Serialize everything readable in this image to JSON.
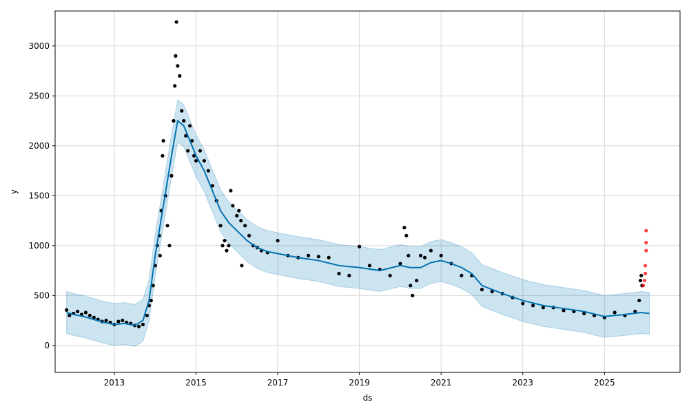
{
  "chart_data": {
    "type": "scatter",
    "title": "",
    "xlabel": "ds",
    "ylabel": "y",
    "xlim": [
      2011.55,
      2026.85
    ],
    "ylim": [
      -270,
      3350
    ],
    "grid": true,
    "x_ticks": [
      2013,
      2015,
      2017,
      2019,
      2021,
      2023,
      2025
    ],
    "y_ticks": [
      0,
      500,
      1000,
      1500,
      2000,
      2500,
      3000
    ],
    "x_tick_labels": [
      "2013",
      "2015",
      "2017",
      "2019",
      "2021",
      "2023",
      "2025"
    ],
    "y_tick_labels": [
      "0",
      "500",
      "1000",
      "1500",
      "2000",
      "2500",
      "3000"
    ],
    "colors": {
      "observed": "#000000",
      "forecast_line": "#0072B2",
      "uncertainty_band": "#0072B2",
      "new_points": "#ff0000"
    },
    "forecast": {
      "name": "yhat",
      "x": [
        2011.83,
        2012.0,
        2012.25,
        2012.5,
        2012.75,
        2013.0,
        2013.25,
        2013.5,
        2013.7,
        2013.85,
        2014.0,
        2014.2,
        2014.4,
        2014.55,
        2014.7,
        2014.85,
        2015.0,
        2015.2,
        2015.4,
        2015.6,
        2015.8,
        2016.0,
        2016.25,
        2016.5,
        2016.75,
        2017.0,
        2017.5,
        2018.0,
        2018.5,
        2019.0,
        2019.5,
        2020.0,
        2020.25,
        2020.5,
        2020.75,
        2021.0,
        2021.25,
        2021.5,
        2021.75,
        2022.0,
        2022.5,
        2023.0,
        2023.5,
        2024.0,
        2024.5,
        2025.0,
        2025.5,
        2025.9,
        2026.1
      ],
      "y": [
        330,
        310,
        290,
        260,
        230,
        210,
        220,
        200,
        250,
        450,
        900,
        1400,
        1900,
        2250,
        2200,
        2050,
        1900,
        1750,
        1550,
        1350,
        1230,
        1150,
        1050,
        980,
        940,
        920,
        880,
        850,
        800,
        780,
        750,
        800,
        780,
        780,
        830,
        850,
        820,
        780,
        720,
        600,
        520,
        450,
        400,
        370,
        340,
        290,
        310,
        330,
        320
      ],
      "lower_offset": 210,
      "upper_offset": 210
    },
    "observed_points": [
      [
        2011.83,
        355
      ],
      [
        2011.9,
        300
      ],
      [
        2012.0,
        320
      ],
      [
        2012.1,
        340
      ],
      [
        2012.2,
        310
      ],
      [
        2012.3,
        330
      ],
      [
        2012.4,
        300
      ],
      [
        2012.5,
        280
      ],
      [
        2012.6,
        260
      ],
      [
        2012.7,
        240
      ],
      [
        2012.8,
        250
      ],
      [
        2012.9,
        230
      ],
      [
        2013.0,
        210
      ],
      [
        2013.1,
        240
      ],
      [
        2013.2,
        250
      ],
      [
        2013.3,
        230
      ],
      [
        2013.4,
        220
      ],
      [
        2013.5,
        200
      ],
      [
        2013.6,
        190
      ],
      [
        2013.7,
        210
      ],
      [
        2013.8,
        300
      ],
      [
        2013.85,
        400
      ],
      [
        2013.9,
        450
      ],
      [
        2013.95,
        600
      ],
      [
        2014.0,
        800
      ],
      [
        2014.05,
        1000
      ],
      [
        2014.1,
        1100
      ],
      [
        2014.12,
        900
      ],
      [
        2014.15,
        1350
      ],
      [
        2014.18,
        1900
      ],
      [
        2014.2,
        2050
      ],
      [
        2014.25,
        1500
      ],
      [
        2014.3,
        1200
      ],
      [
        2014.35,
        1000
      ],
      [
        2014.4,
        1700
      ],
      [
        2014.45,
        2250
      ],
      [
        2014.48,
        2600
      ],
      [
        2014.5,
        2900
      ],
      [
        2014.52,
        3240
      ],
      [
        2014.55,
        2800
      ],
      [
        2014.6,
        2700
      ],
      [
        2014.65,
        2350
      ],
      [
        2014.7,
        2250
      ],
      [
        2014.75,
        2100
      ],
      [
        2014.8,
        1950
      ],
      [
        2014.85,
        2200
      ],
      [
        2014.9,
        2050
      ],
      [
        2014.95,
        1900
      ],
      [
        2015.0,
        1850
      ],
      [
        2015.1,
        1950
      ],
      [
        2015.2,
        1850
      ],
      [
        2015.3,
        1750
      ],
      [
        2015.4,
        1600
      ],
      [
        2015.5,
        1450
      ],
      [
        2015.6,
        1200
      ],
      [
        2015.65,
        1000
      ],
      [
        2015.7,
        1050
      ],
      [
        2015.75,
        950
      ],
      [
        2015.8,
        1000
      ],
      [
        2015.85,
        1550
      ],
      [
        2015.9,
        1400
      ],
      [
        2016.0,
        1300
      ],
      [
        2016.05,
        1350
      ],
      [
        2016.1,
        1250
      ],
      [
        2016.12,
        800
      ],
      [
        2016.2,
        1200
      ],
      [
        2016.3,
        1100
      ],
      [
        2016.4,
        1000
      ],
      [
        2016.5,
        980
      ],
      [
        2016.6,
        950
      ],
      [
        2016.75,
        930
      ],
      [
        2017.0,
        1050
      ],
      [
        2017.25,
        900
      ],
      [
        2017.5,
        880
      ],
      [
        2017.75,
        900
      ],
      [
        2018.0,
        890
      ],
      [
        2018.25,
        880
      ],
      [
        2018.5,
        720
      ],
      [
        2018.75,
        700
      ],
      [
        2019.0,
        990
      ],
      [
        2019.25,
        800
      ],
      [
        2019.5,
        760
      ],
      [
        2019.75,
        700
      ],
      [
        2020.0,
        820
      ],
      [
        2020.1,
        1180
      ],
      [
        2020.15,
        1100
      ],
      [
        2020.2,
        900
      ],
      [
        2020.25,
        600
      ],
      [
        2020.3,
        500
      ],
      [
        2020.4,
        650
      ],
      [
        2020.5,
        900
      ],
      [
        2020.6,
        880
      ],
      [
        2020.75,
        950
      ],
      [
        2021.0,
        900
      ],
      [
        2021.25,
        820
      ],
      [
        2021.5,
        700
      ],
      [
        2021.75,
        700
      ],
      [
        2022.0,
        560
      ],
      [
        2022.25,
        540
      ],
      [
        2022.5,
        520
      ],
      [
        2022.75,
        480
      ],
      [
        2023.0,
        420
      ],
      [
        2023.25,
        400
      ],
      [
        2023.5,
        380
      ],
      [
        2023.75,
        380
      ],
      [
        2024.0,
        350
      ],
      [
        2024.25,
        340
      ],
      [
        2024.5,
        320
      ],
      [
        2024.75,
        300
      ],
      [
        2025.0,
        280
      ],
      [
        2025.25,
        330
      ],
      [
        2025.5,
        300
      ],
      [
        2025.75,
        340
      ],
      [
        2025.85,
        450
      ],
      [
        2025.88,
        650
      ],
      [
        2025.9,
        700
      ],
      [
        2025.92,
        600
      ]
    ],
    "new_points": [
      [
        2025.95,
        600
      ],
      [
        2025.98,
        650
      ],
      [
        2026.0,
        720
      ],
      [
        2026.0,
        800
      ],
      [
        2026.02,
        950
      ],
      [
        2026.02,
        1030
      ],
      [
        2026.02,
        1150
      ]
    ]
  }
}
